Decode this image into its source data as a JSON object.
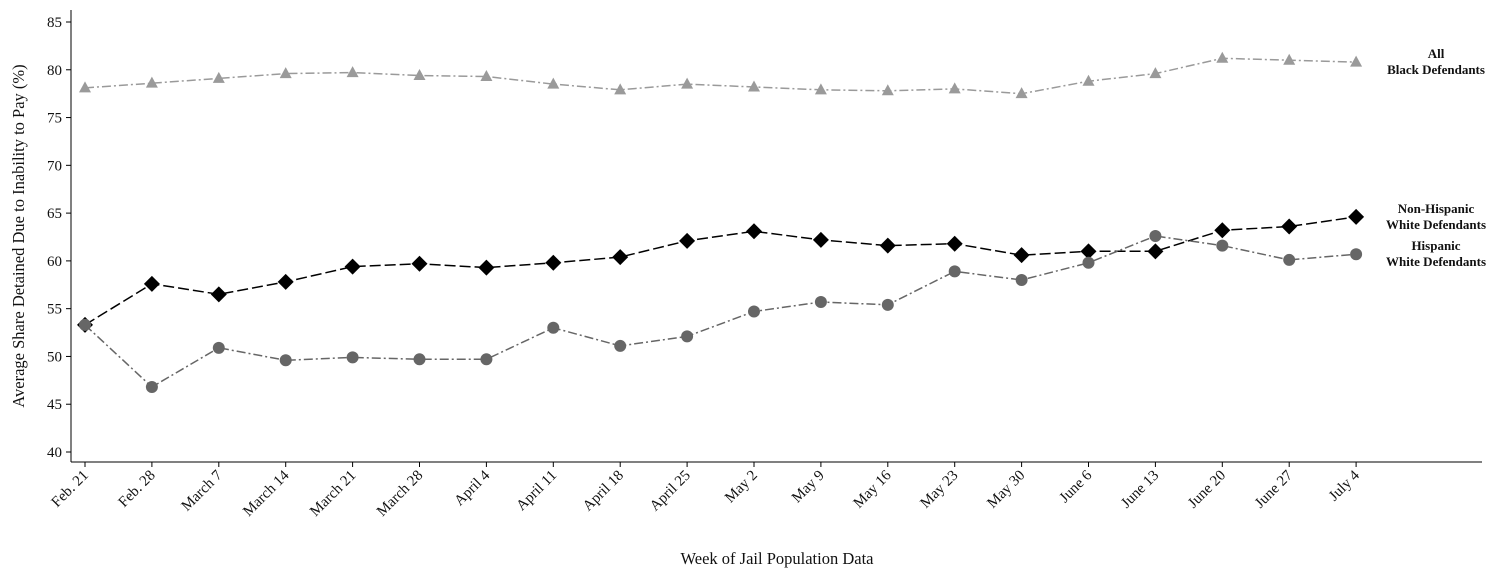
{
  "chart_data": {
    "type": "line",
    "xlabel": "Week of Jail Population Data",
    "ylabel": "Average Share Detained Due to Inability to Pay (%)",
    "ylim": [
      40,
      85
    ],
    "yticks": [
      40,
      45,
      50,
      55,
      60,
      65,
      70,
      75,
      80,
      85
    ],
    "grid": false,
    "categories": [
      "Feb. 21",
      "Feb. 28",
      "March 7",
      "March 14",
      "March 21",
      "March 28",
      "April 4",
      "April 11",
      "April 18",
      "April 25",
      "May 2",
      "May 9",
      "May 16",
      "May 23",
      "May 30",
      "June 6",
      "June 13",
      "June 20",
      "June 27",
      "July 4"
    ],
    "series": [
      {
        "name": "All Black Defendants",
        "label_lines": [
          "All",
          "Black Defendants"
        ],
        "color": "#9a9a9a",
        "marker": "triangle",
        "dash": "dash-dot",
        "values": [
          78.1,
          78.6,
          79.1,
          79.6,
          79.7,
          79.4,
          79.3,
          78.5,
          77.9,
          78.5,
          78.2,
          77.9,
          77.8,
          78.0,
          77.5,
          78.8,
          79.6,
          81.2,
          81.0,
          80.8
        ]
      },
      {
        "name": "Non-Hispanic White Defendants",
        "label_lines": [
          "Non-Hispanic",
          "White Defendants"
        ],
        "color": "#000000",
        "marker": "diamond",
        "dash": "long-dash",
        "values": [
          53.3,
          57.6,
          56.5,
          57.8,
          59.4,
          59.7,
          59.3,
          59.8,
          60.4,
          62.1,
          63.1,
          62.2,
          61.6,
          61.8,
          60.6,
          61.0,
          61.0,
          63.2,
          63.6,
          64.6
        ]
      },
      {
        "name": "Hispanic White Defendants",
        "label_lines": [
          "Hispanic",
          "White Defendants"
        ],
        "color": "#666666",
        "marker": "circle",
        "dash": "dash-dot",
        "values": [
          53.3,
          46.8,
          50.9,
          49.6,
          49.9,
          49.7,
          49.7,
          53.0,
          51.1,
          52.1,
          54.7,
          55.7,
          55.4,
          58.9,
          58.0,
          59.8,
          62.6,
          61.6,
          60.1,
          60.7
        ]
      }
    ]
  }
}
